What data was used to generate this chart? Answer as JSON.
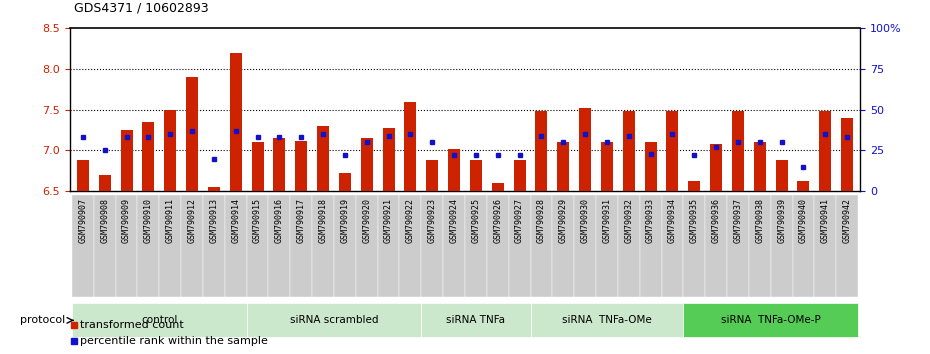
{
  "title": "GDS4371 / 10602893",
  "samples": [
    "GSM790907",
    "GSM790908",
    "GSM790909",
    "GSM790910",
    "GSM790911",
    "GSM790912",
    "GSM790913",
    "GSM790914",
    "GSM790915",
    "GSM790916",
    "GSM790917",
    "GSM790918",
    "GSM790919",
    "GSM790920",
    "GSM790921",
    "GSM790922",
    "GSM790923",
    "GSM790924",
    "GSM790925",
    "GSM790926",
    "GSM790927",
    "GSM790928",
    "GSM790929",
    "GSM790930",
    "GSM790931",
    "GSM790932",
    "GSM790933",
    "GSM790934",
    "GSM790935",
    "GSM790936",
    "GSM790937",
    "GSM790938",
    "GSM790939",
    "GSM790940",
    "GSM790941",
    "GSM790942"
  ],
  "transformed_count": [
    6.88,
    6.7,
    7.25,
    7.35,
    7.5,
    7.9,
    6.55,
    8.2,
    7.1,
    7.15,
    7.12,
    7.3,
    6.72,
    7.15,
    7.28,
    7.6,
    6.88,
    7.02,
    6.88,
    6.6,
    6.88,
    7.48,
    7.1,
    7.52,
    7.1,
    7.48,
    7.1,
    7.48,
    6.62,
    7.08,
    7.48,
    7.1,
    6.88,
    6.62,
    7.48,
    7.4
  ],
  "percentile_rank": [
    33,
    25,
    33,
    33,
    35,
    37,
    20,
    37,
    33,
    33,
    33,
    35,
    22,
    30,
    34,
    35,
    30,
    22,
    22,
    22,
    22,
    34,
    30,
    35,
    30,
    34,
    23,
    35,
    22,
    27,
    30,
    30,
    30,
    15,
    35,
    33
  ],
  "groups": [
    {
      "label": "control",
      "start": 0,
      "end": 7,
      "light": true
    },
    {
      "label": "siRNA scrambled",
      "start": 8,
      "end": 15,
      "light": true
    },
    {
      "label": "siRNA TNFa",
      "start": 16,
      "end": 20,
      "light": true
    },
    {
      "label": "siRNA  TNFa-OMe",
      "start": 21,
      "end": 27,
      "light": true
    },
    {
      "label": "siRNA  TNFa-OMe-P",
      "start": 28,
      "end": 35,
      "light": false
    }
  ],
  "ylim_left": [
    6.5,
    8.5
  ],
  "ylim_right": [
    0,
    100
  ],
  "yticks_left": [
    6.5,
    7.0,
    7.5,
    8.0,
    8.5
  ],
  "yticks_right": [
    0,
    25,
    50,
    75,
    100
  ],
  "ytick_labels_right": [
    "0",
    "25",
    "50",
    "75",
    "100%"
  ],
  "bar_color": "#cc2200",
  "dot_color": "#1111cc",
  "bar_width": 0.55,
  "color_light_group": "#cce8cc",
  "color_dark_group": "#55cc55",
  "xtick_bg": "#cccccc",
  "protocol_label": "protocol"
}
